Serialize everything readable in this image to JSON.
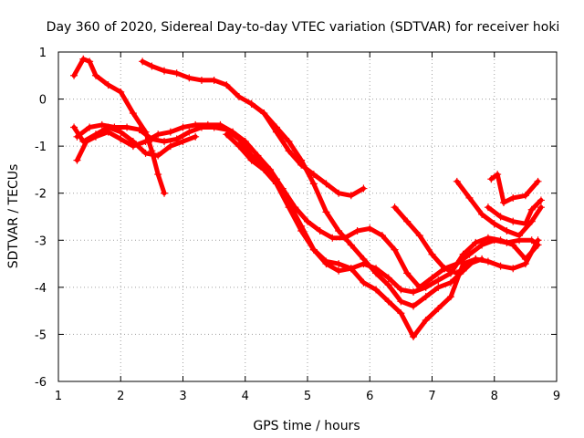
{
  "chart_data": {
    "type": "scatter",
    "title": "Day 360 of 2020, Sidereal Day-to-day VTEC variation (SDTVAR) for receiver hoki",
    "xlabel": "GPS time / hours",
    "ylabel": "SDTVAR / TECUs",
    "xlim": [
      1,
      9
    ],
    "ylim": [
      -6,
      1
    ],
    "xticks": [
      "1",
      "2",
      "3",
      "4",
      "5",
      "6",
      "7",
      "8",
      "9"
    ],
    "yticks": [
      "1",
      "0",
      "-1",
      "-2",
      "-3",
      "-4",
      "-5",
      "-6"
    ],
    "grid": true,
    "marker": "plus",
    "color": "#ff0000",
    "series": [
      {
        "points": [
          [
            1.25,
            0.5
          ],
          [
            1.4,
            0.85
          ],
          [
            1.5,
            0.8
          ],
          [
            1.6,
            0.5
          ],
          [
            1.8,
            0.3
          ],
          [
            2.0,
            0.15
          ],
          [
            2.2,
            -0.3
          ],
          [
            2.4,
            -0.7
          ],
          [
            2.5,
            -1.1
          ],
          [
            2.6,
            -1.6
          ],
          [
            2.7,
            -2.0
          ]
        ]
      },
      {
        "points": [
          [
            2.35,
            0.8
          ],
          [
            2.5,
            0.7
          ],
          [
            2.7,
            0.6
          ],
          [
            2.9,
            0.55
          ],
          [
            3.1,
            0.45
          ],
          [
            3.3,
            0.4
          ],
          [
            3.5,
            0.4
          ],
          [
            3.7,
            0.3
          ],
          [
            3.9,
            0.05
          ],
          [
            4.1,
            -0.1
          ],
          [
            4.3,
            -0.3
          ],
          [
            4.5,
            -0.7
          ],
          [
            4.7,
            -1.1
          ],
          [
            4.9,
            -1.4
          ],
          [
            5.1,
            -1.6
          ],
          [
            5.3,
            -1.8
          ],
          [
            5.5,
            -2.0
          ],
          [
            5.7,
            -2.05
          ],
          [
            5.9,
            -1.9
          ]
        ]
      },
      {
        "points": [
          [
            1.25,
            -0.6
          ],
          [
            1.4,
            -0.9
          ],
          [
            1.6,
            -0.75
          ],
          [
            1.8,
            -0.6
          ],
          [
            2.0,
            -0.7
          ],
          [
            2.2,
            -0.9
          ],
          [
            2.4,
            -1.15
          ],
          [
            2.6,
            -1.2
          ],
          [
            2.8,
            -1.0
          ],
          [
            3.0,
            -0.9
          ],
          [
            3.2,
            -0.8
          ]
        ]
      },
      {
        "points": [
          [
            1.3,
            -1.3
          ],
          [
            1.45,
            -0.9
          ],
          [
            1.6,
            -0.8
          ],
          [
            1.8,
            -0.7
          ],
          [
            2.0,
            -0.85
          ],
          [
            2.2,
            -1.0
          ],
          [
            2.4,
            -0.9
          ],
          [
            2.6,
            -0.75
          ],
          [
            2.8,
            -0.7
          ],
          [
            3.0,
            -0.6
          ],
          [
            3.2,
            -0.55
          ],
          [
            3.4,
            -0.55
          ],
          [
            3.6,
            -0.55
          ],
          [
            3.8,
            -0.7
          ],
          [
            4.0,
            -0.9
          ],
          [
            4.2,
            -1.2
          ],
          [
            4.4,
            -1.5
          ],
          [
            4.6,
            -1.9
          ],
          [
            4.8,
            -2.3
          ],
          [
            5.0,
            -2.6
          ],
          [
            5.2,
            -2.8
          ],
          [
            5.4,
            -2.95
          ],
          [
            5.6,
            -2.95
          ],
          [
            5.8,
            -2.8
          ],
          [
            6.0,
            -2.75
          ],
          [
            6.2,
            -2.9
          ],
          [
            6.4,
            -3.2
          ],
          [
            6.6,
            -3.7
          ],
          [
            6.8,
            -4.0
          ],
          [
            7.0,
            -3.8
          ],
          [
            7.2,
            -3.6
          ],
          [
            7.4,
            -3.5
          ],
          [
            7.6,
            -3.3
          ],
          [
            7.8,
            -3.1
          ],
          [
            8.0,
            -3.0
          ],
          [
            8.2,
            -3.05
          ],
          [
            8.4,
            -3.0
          ],
          [
            8.6,
            -3.0
          ],
          [
            8.7,
            -3.1
          ]
        ]
      },
      {
        "points": [
          [
            1.3,
            -0.8
          ],
          [
            1.5,
            -0.6
          ],
          [
            1.7,
            -0.55
          ],
          [
            1.9,
            -0.6
          ],
          [
            2.1,
            -0.6
          ],
          [
            2.3,
            -0.65
          ],
          [
            2.5,
            -0.85
          ],
          [
            2.7,
            -0.9
          ],
          [
            2.9,
            -0.85
          ],
          [
            3.1,
            -0.7
          ],
          [
            3.3,
            -0.6
          ],
          [
            3.5,
            -0.6
          ],
          [
            3.7,
            -0.65
          ],
          [
            3.9,
            -0.85
          ],
          [
            4.1,
            -1.2
          ],
          [
            4.3,
            -1.4
          ],
          [
            4.5,
            -1.7
          ],
          [
            4.7,
            -2.2
          ],
          [
            4.9,
            -2.7
          ],
          [
            5.1,
            -3.2
          ],
          [
            5.3,
            -3.5
          ],
          [
            5.5,
            -3.65
          ],
          [
            5.7,
            -3.6
          ],
          [
            5.9,
            -3.5
          ],
          [
            6.1,
            -3.6
          ],
          [
            6.3,
            -3.8
          ],
          [
            6.5,
            -4.05
          ],
          [
            6.7,
            -4.1
          ],
          [
            6.9,
            -4.0
          ],
          [
            7.1,
            -3.85
          ],
          [
            7.3,
            -3.7
          ],
          [
            7.5,
            -3.3
          ],
          [
            7.7,
            -3.05
          ],
          [
            7.9,
            -2.95
          ],
          [
            8.1,
            -3.0
          ],
          [
            8.3,
            -3.1
          ],
          [
            8.5,
            -3.4
          ],
          [
            8.7,
            -3.1
          ]
        ]
      },
      {
        "points": [
          [
            3.7,
            -0.75
          ],
          [
            3.9,
            -1.0
          ],
          [
            4.1,
            -1.3
          ],
          [
            4.3,
            -1.5
          ],
          [
            4.5,
            -1.8
          ],
          [
            4.7,
            -2.3
          ],
          [
            4.9,
            -2.8
          ],
          [
            5.1,
            -3.2
          ],
          [
            5.3,
            -3.45
          ],
          [
            5.5,
            -3.5
          ],
          [
            5.7,
            -3.6
          ],
          [
            5.9,
            -3.9
          ],
          [
            6.1,
            -4.05
          ],
          [
            6.3,
            -4.3
          ],
          [
            6.5,
            -4.55
          ],
          [
            6.7,
            -5.05
          ],
          [
            6.9,
            -4.7
          ],
          [
            7.1,
            -4.45
          ],
          [
            7.3,
            -4.2
          ],
          [
            7.5,
            -3.5
          ],
          [
            7.7,
            -3.4
          ],
          [
            7.9,
            -3.45
          ],
          [
            8.1,
            -3.55
          ],
          [
            8.3,
            -3.6
          ],
          [
            8.5,
            -3.5
          ],
          [
            8.7,
            -3.0
          ]
        ]
      },
      {
        "points": [
          [
            4.1,
            -0.1
          ],
          [
            4.3,
            -0.3
          ],
          [
            4.5,
            -0.6
          ],
          [
            4.7,
            -0.9
          ],
          [
            4.9,
            -1.3
          ],
          [
            5.1,
            -1.8
          ],
          [
            5.3,
            -2.4
          ],
          [
            5.5,
            -2.8
          ],
          [
            5.7,
            -3.1
          ],
          [
            5.9,
            -3.4
          ],
          [
            6.1,
            -3.7
          ],
          [
            6.3,
            -3.95
          ],
          [
            6.5,
            -4.3
          ],
          [
            6.7,
            -4.4
          ],
          [
            6.9,
            -4.2
          ],
          [
            7.1,
            -4.0
          ],
          [
            7.3,
            -3.9
          ],
          [
            7.5,
            -3.65
          ],
          [
            7.7,
            -3.4
          ]
        ]
      },
      {
        "points": [
          [
            6.4,
            -2.3
          ],
          [
            6.6,
            -2.6
          ],
          [
            6.8,
            -2.9
          ],
          [
            7.0,
            -3.3
          ],
          [
            7.2,
            -3.6
          ],
          [
            7.4,
            -3.7
          ],
          [
            7.6,
            -3.5
          ],
          [
            7.8,
            -3.4
          ]
        ]
      },
      {
        "points": [
          [
            7.4,
            -1.75
          ],
          [
            7.6,
            -2.1
          ],
          [
            7.8,
            -2.45
          ],
          [
            8.0,
            -2.65
          ],
          [
            8.2,
            -2.8
          ],
          [
            8.4,
            -2.9
          ],
          [
            8.6,
            -2.6
          ],
          [
            8.75,
            -2.3
          ]
        ]
      },
      {
        "points": [
          [
            7.95,
            -1.7
          ],
          [
            8.05,
            -1.6
          ],
          [
            8.15,
            -2.2
          ],
          [
            8.3,
            -2.1
          ],
          [
            8.5,
            -2.05
          ],
          [
            8.7,
            -1.75
          ]
        ]
      },
      {
        "points": [
          [
            7.9,
            -2.3
          ],
          [
            8.1,
            -2.5
          ],
          [
            8.3,
            -2.6
          ],
          [
            8.5,
            -2.65
          ],
          [
            8.6,
            -2.35
          ],
          [
            8.75,
            -2.15
          ]
        ]
      }
    ]
  }
}
